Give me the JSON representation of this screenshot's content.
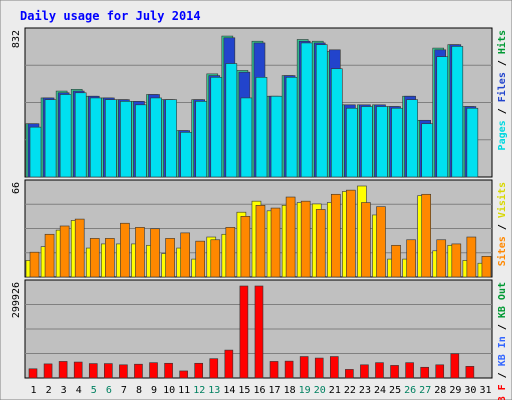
{
  "title": "Daily usage for July 2014",
  "colors": {
    "frame_bg": "#ececec",
    "plot_bg": "#c0c0c0",
    "title": "#0000ff",
    "max_label": "#000000",
    "hits": "#33cc99",
    "files": "#2244cc",
    "pages": "#00e0f0",
    "visits": "#ffff00",
    "sites": "#ff8800",
    "kb_out": "#009933",
    "kb_in": "#3366ff",
    "kb_f": "#ff0000",
    "weekend_label": "#008060",
    "weekday_label": "#000000"
  },
  "legend": {
    "top": [
      {
        "text": "Pages",
        "color": "#00d8e0"
      },
      {
        "text": " / ",
        "color": "#000000"
      },
      {
        "text": "Files",
        "color": "#2244cc"
      },
      {
        "text": " / ",
        "color": "#000000"
      },
      {
        "text": "Hits",
        "color": "#009933"
      }
    ],
    "middle": [
      {
        "text": "Sites",
        "color": "#ff8800"
      },
      {
        "text": " / ",
        "color": "#000000"
      },
      {
        "text": "Visits",
        "color": "#d8d800"
      }
    ],
    "bottom": [
      {
        "text": "KB F",
        "color": "#ff0000"
      },
      {
        "text": " / ",
        "color": "#000000"
      },
      {
        "text": "KB In",
        "color": "#3366ff"
      },
      {
        "text": " / ",
        "color": "#000000"
      },
      {
        "text": "KB Out",
        "color": "#009933"
      }
    ]
  },
  "chart_data": {
    "type": "bar",
    "title": "Daily usage for July 2014",
    "categories": [
      "1",
      "2",
      "3",
      "4",
      "5",
      "6",
      "7",
      "8",
      "9",
      "10",
      "11",
      "12",
      "13",
      "14",
      "15",
      "16",
      "17",
      "18",
      "19",
      "20",
      "21",
      "22",
      "23",
      "24",
      "25",
      "26",
      "27",
      "28",
      "29",
      "30",
      "31"
    ],
    "weekend_days": [
      "5",
      "6",
      "12",
      "13",
      "19",
      "20",
      "26",
      "27"
    ],
    "panels": [
      {
        "name": "hits-files-pages",
        "max_label": "832",
        "ylim": [
          0,
          832
        ],
        "series": [
          {
            "name": "Hits",
            "values": [
              310,
              460,
              500,
              510,
              470,
              460,
              450,
              440,
              480,
              450,
              270,
              450,
              600,
              820,
              620,
              790,
              470,
              590,
              800,
              790,
              730,
              420,
              420,
              420,
              410,
              470,
              330,
              750,
              770,
              410,
              0
            ]
          },
          {
            "name": "Files",
            "values": [
              310,
              460,
              490,
              500,
              470,
              460,
              450,
              440,
              480,
              450,
              270,
              450,
              590,
              810,
              610,
              780,
              470,
              590,
              790,
              780,
              740,
              420,
              420,
              420,
              410,
              470,
              330,
              740,
              770,
              410,
              0
            ]
          },
          {
            "name": "Pages",
            "values": [
              290,
              450,
              480,
              490,
              460,
              450,
              440,
              420,
              460,
              450,
              260,
              440,
              580,
              660,
              460,
              580,
              470,
              580,
              780,
              770,
              630,
              400,
              410,
              410,
              400,
              450,
              310,
              700,
              760,
              400,
              0
            ]
          }
        ]
      },
      {
        "name": "visits-sites",
        "max_label": "66",
        "ylim": [
          0,
          66
        ],
        "series": [
          {
            "name": "Visits",
            "values": [
              12,
              22,
              34,
              41,
              21,
              24,
              24,
              24,
              23,
              17,
              21,
              13,
              29,
              31,
              47,
              55,
              48,
              52,
              54,
              53,
              54,
              62,
              67,
              45,
              13,
              13,
              59,
              19,
              23,
              12,
              10
            ]
          },
          {
            "name": "Sites",
            "values": [
              18,
              31,
              37,
              42,
              28,
              28,
              39,
              36,
              35,
              28,
              32,
              26,
              27,
              36,
              44,
              52,
              50,
              58,
              55,
              49,
              60,
              63,
              54,
              51,
              23,
              27,
              60,
              27,
              24,
              29,
              15
            ]
          }
        ]
      },
      {
        "name": "kbytes",
        "max_label": "299926",
        "ylim": [
          0,
          299926
        ],
        "series": [
          {
            "name": "KB F",
            "values": [
              30000,
              46000,
              54000,
              52000,
              47000,
              47000,
              43000,
              45000,
              50000,
              48000,
              23000,
              48000,
              63000,
              91000,
              300000,
              300000,
              54000,
              55000,
              70000,
              65000,
              70000,
              28000,
              43000,
              50000,
              41000,
              50000,
              35000,
              43000,
              79000,
              38000,
              0
            ]
          }
        ]
      }
    ]
  }
}
